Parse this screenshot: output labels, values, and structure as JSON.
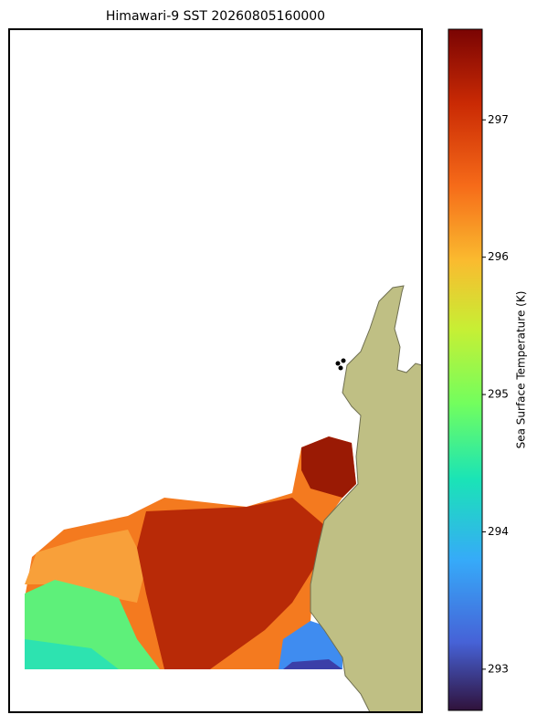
{
  "chart_data": {
    "type": "heatmap",
    "title": "Himawari-9 SST 20260805160000",
    "colorbar_label": "Sea Surface Temperature (K)",
    "ylim": [
      292.7,
      297.66
    ],
    "yticks": [
      293,
      294,
      295,
      296,
      297
    ]
  }
}
